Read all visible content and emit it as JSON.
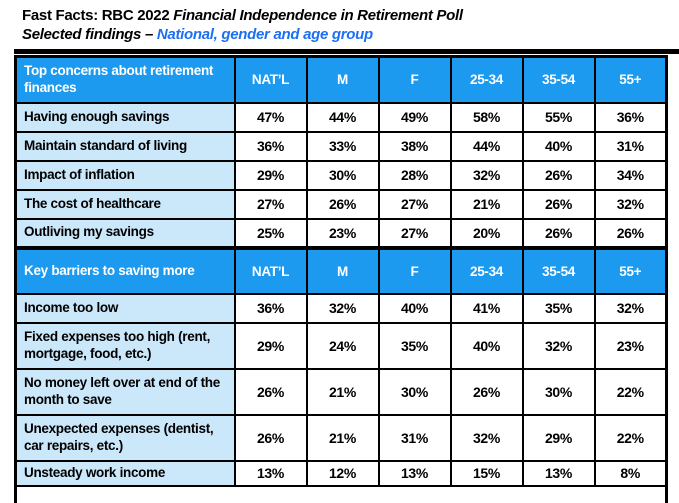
{
  "title": {
    "line1_plain": "Fast Facts: RBC 2022 ",
    "line1_italic": "Financial Independence in Retirement Poll",
    "line2_plain": "Selected findings – ",
    "line2_highlight": "National, gender and age group"
  },
  "colors": {
    "header_bg": "#1B9AF0",
    "label_bg": "#CBE7FA",
    "accent_text": "#1D6FF2",
    "border": "#000000"
  },
  "columns": [
    "NAT’L",
    "M",
    "F",
    "25-34",
    "35-54",
    "55+"
  ],
  "sections": [
    {
      "header": "Top concerns about retirement finances",
      "rows": [
        {
          "label": "Having enough savings",
          "values": [
            "47%",
            "44%",
            "49%",
            "58%",
            "55%",
            "36%"
          ]
        },
        {
          "label": "Maintain standard of living",
          "values": [
            "36%",
            "33%",
            "38%",
            "44%",
            "40%",
            "31%"
          ]
        },
        {
          "label": "Impact of inflation",
          "values": [
            "29%",
            "30%",
            "28%",
            "32%",
            "26%",
            "34%"
          ]
        },
        {
          "label": "The cost of healthcare",
          "values": [
            "27%",
            "26%",
            "27%",
            "21%",
            "26%",
            "32%"
          ]
        },
        {
          "label": "Outliving my savings",
          "values": [
            "25%",
            "23%",
            "27%",
            "20%",
            "26%",
            "26%"
          ]
        }
      ]
    },
    {
      "header": "Key barriers to saving more",
      "rows": [
        {
          "label": "Income too low",
          "values": [
            "36%",
            "32%",
            "40%",
            "41%",
            "35%",
            "32%"
          ]
        },
        {
          "label": "Fixed expenses too high (rent, mortgage, food, etc.)",
          "values": [
            "29%",
            "24%",
            "35%",
            "40%",
            "32%",
            "23%"
          ]
        },
        {
          "label": "No money left over at end of the month to save",
          "values": [
            "26%",
            "21%",
            "30%",
            "26%",
            "30%",
            "22%"
          ]
        },
        {
          "label": "Unexpected expenses (dentist, car repairs, etc.)",
          "values": [
            "26%",
            "21%",
            "31%",
            "32%",
            "29%",
            "22%"
          ]
        },
        {
          "label": "Unsteady work income",
          "values": [
            "13%",
            "12%",
            "13%",
            "15%",
            "13%",
            "8%"
          ]
        }
      ]
    }
  ]
}
